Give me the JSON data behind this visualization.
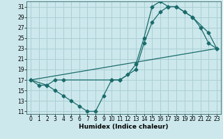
{
  "xlabel": "Humidex (Indice chaleur)",
  "xlim": [
    -0.5,
    23.5
  ],
  "ylim": [
    10.5,
    32
  ],
  "yticks": [
    11,
    13,
    15,
    17,
    19,
    21,
    23,
    25,
    27,
    29,
    31
  ],
  "xticks": [
    0,
    1,
    2,
    3,
    4,
    5,
    6,
    7,
    8,
    9,
    10,
    11,
    12,
    13,
    14,
    15,
    16,
    17,
    18,
    19,
    20,
    21,
    22,
    23
  ],
  "bg_color": "#cce8ec",
  "grid_color": "#aacfd4",
  "line_color": "#1a6b6b",
  "line1_x": [
    0,
    1,
    2,
    3,
    4,
    5,
    6,
    7,
    8,
    9,
    10,
    11,
    12,
    13,
    14,
    15,
    16,
    17,
    18,
    19,
    20,
    21,
    22,
    23
  ],
  "line1_y": [
    17,
    16,
    16,
    15,
    14,
    13,
    12,
    11,
    11,
    14,
    17,
    17,
    18,
    20,
    25,
    31,
    32,
    31,
    31,
    30,
    29,
    27,
    24,
    23
  ],
  "line2_x": [
    0,
    2,
    3,
    4,
    10,
    11,
    13,
    14,
    15,
    16,
    17,
    18,
    19,
    20,
    22,
    23
  ],
  "line2_y": [
    17,
    16,
    17,
    17,
    17,
    17,
    19,
    24,
    28,
    30,
    31,
    31,
    30,
    29,
    26,
    23
  ],
  "line3_x": [
    0,
    23
  ],
  "line3_y": [
    17,
    23
  ],
  "tick_fontsize": 5.5,
  "xlabel_fontsize": 6.5,
  "marker_size": 2.5
}
